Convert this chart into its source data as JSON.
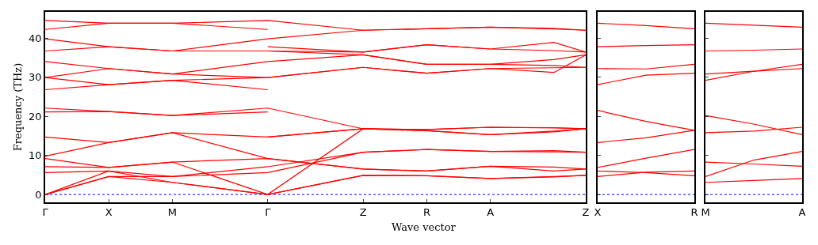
{
  "chart_data": [
    {
      "type": "line",
      "ylabel": "Frequency (THz)",
      "xlabel": "Wave vector",
      "ylim": [
        -2,
        46.7
      ],
      "categories": [
        "Γ",
        null,
        "X",
        null,
        "M",
        null,
        null,
        "Γ",
        null,
        null,
        "Z",
        null,
        "R",
        null,
        "A",
        null,
        null,
        "Z"
      ],
      "yticks": [
        0,
        10,
        20,
        30,
        40
      ],
      "ref_lines": [
        {
          "axis": "y",
          "value": 0,
          "color": "#0000ff",
          "line_style": "dotted"
        }
      ],
      "series": [
        {
          "color": "#ff0000",
          "values": [
            44.5,
            null,
            43.8,
            null,
            43.8,
            null,
            null,
            44.5,
            null,
            null,
            42.0,
            null,
            42.4,
            null,
            42.8,
            null,
            42.3,
            42.0
          ]
        },
        {
          "color": "#ff0000",
          "values": [
            39.8,
            null,
            37.8,
            null,
            36.7,
            null,
            null,
            39.8,
            null,
            null,
            42.0,
            null,
            42.4,
            null,
            42.8,
            null,
            42.5,
            42.0
          ]
        },
        {
          "color": "#ff0000",
          "values": [
            36.7,
            null,
            37.8,
            null,
            36.7,
            null,
            null,
            36.7,
            null,
            null,
            36.4,
            null,
            38.3,
            null,
            37.2,
            null,
            36.8,
            36.4
          ]
        },
        {
          "color": "#ff0000",
          "values": [
            34.0,
            null,
            32.2,
            null,
            30.8,
            null,
            null,
            34.0,
            null,
            null,
            35.7,
            null,
            33.3,
            null,
            33.3,
            null,
            34.5,
            35.7
          ]
        },
        {
          "color": "#ff0000",
          "values": [
            29.9,
            null,
            32.2,
            null,
            30.8,
            null,
            null,
            29.9,
            null,
            null,
            32.5,
            null,
            31.0,
            null,
            32.2,
            null,
            32.4,
            32.5
          ]
        },
        {
          "color": "#ff0000",
          "values": [
            29.9,
            null,
            28.1,
            null,
            29.2,
            null,
            null,
            29.9,
            null,
            null,
            32.5,
            null,
            31.0,
            null,
            32.2,
            null,
            31.2,
            35.7
          ]
        },
        {
          "color": "#ff0000",
          "values": [
            22.1,
            null,
            21.2,
            null,
            20.2,
            null,
            null,
            22.1,
            null,
            null,
            16.8,
            null,
            16.6,
            null,
            17.2,
            null,
            17.1,
            16.8
          ]
        },
        {
          "color": "#ff0000",
          "values": [
            14.7,
            null,
            13.3,
            null,
            15.8,
            null,
            null,
            14.7,
            null,
            null,
            16.8,
            null,
            16.6,
            null,
            17.2,
            null,
            17.0,
            16.8
          ]
        },
        {
          "color": "#ff0000",
          "values": [
            9.8,
            null,
            13.3,
            null,
            15.8,
            null,
            null,
            9.2,
            null,
            null,
            6.5,
            null,
            6.0,
            null,
            7.2,
            null,
            6.0,
            6.5
          ]
        },
        {
          "color": "#ff0000",
          "values": [
            9.2,
            null,
            6.9,
            null,
            8.3,
            null,
            null,
            9.2,
            null,
            null,
            6.5,
            null,
            6.0,
            null,
            7.2,
            null,
            7.0,
            6.5
          ]
        },
        {
          "color": "#ff0000",
          "values": [
            5.6,
            null,
            6.0,
            null,
            4.6,
            null,
            null,
            7.1,
            null,
            null,
            10.8,
            null,
            11.5,
            null,
            11.0,
            null,
            11.2,
            10.8
          ]
        },
        {
          "color": "#ff0000",
          "values": [
            0,
            null,
            4.6,
            null,
            4.6,
            null,
            null,
            5.6,
            null,
            null,
            10.8,
            null,
            11.5,
            null,
            11.0,
            null,
            10.9,
            10.8
          ]
        },
        {
          "color": "#ff0000",
          "values": [
            7.1,
            null,
            6.9,
            null,
            8.3,
            null,
            null,
            0,
            null,
            null,
            4.9,
            null,
            4.8,
            null,
            4.1,
            null,
            4.6,
            4.9
          ]
        },
        {
          "color": "#ff0000",
          "values": [
            0,
            null,
            4.6,
            null,
            3.1,
            null,
            null,
            0,
            null,
            null,
            4.9,
            null,
            4.8,
            null,
            4.1,
            null,
            4.5,
            4.9
          ]
        },
        {
          "color": "#ff0000",
          "values": [
            0,
            null,
            6.0,
            null,
            3.1,
            null,
            null,
            0,
            null,
            null,
            16.8,
            null,
            16.3,
            null,
            15.3,
            null,
            16.2,
            16.8
          ]
        },
        {
          "color": "#ff0000",
          "values": [
            42.2,
            null,
            43.8,
            null,
            43.8,
            null,
            null,
            42.2,
            null,
            null,
            null,
            null,
            null,
            null,
            null,
            null,
            null,
            null
          ]
        },
        {
          "color": "#ff0000",
          "values": [
            26.8,
            null,
            28.1,
            null,
            29.2,
            null,
            null,
            26.8,
            null,
            null,
            null,
            null,
            null,
            null,
            null,
            null,
            null,
            null
          ]
        },
        {
          "color": "#ff0000",
          "values": [
            21.1,
            null,
            21.2,
            null,
            20.2,
            null,
            null,
            21.1,
            null,
            null,
            null,
            null,
            null,
            null,
            null,
            null,
            null,
            null
          ]
        },
        {
          "color": "#ff0000",
          "values": [
            null,
            null,
            null,
            null,
            null,
            null,
            null,
            37.8,
            null,
            null,
            36.4,
            null,
            38.3,
            null,
            37.2,
            null,
            38.9,
            36.4
          ]
        },
        {
          "color": "#ff0000",
          "values": [
            null,
            null,
            null,
            null,
            null,
            null,
            null,
            36.7,
            null,
            null,
            35.7,
            null,
            33.3,
            null,
            33.3,
            null,
            33.0,
            32.5
          ]
        },
        {
          "color": "#ff0000",
          "values": [
            null,
            null,
            null,
            null,
            null,
            null,
            null,
            14.7,
            null,
            null,
            16.8,
            null,
            16.3,
            null,
            15.3,
            null,
            16.0,
            16.8
          ]
        }
      ]
    },
    {
      "type": "line",
      "ylim": [
        -2,
        46.7
      ],
      "categories": [
        "X",
        null,
        "R"
      ],
      "yticks": [
        {
          "value": 0,
          "label": null
        },
        {
          "value": 10,
          "label": null
        },
        {
          "value": 20,
          "label": null
        },
        {
          "value": 30,
          "label": null
        },
        {
          "value": 40,
          "label": null
        }
      ],
      "tick_labels": "x",
      "ref_lines": [
        {
          "axis": "y",
          "value": 0,
          "color": "#0000ff",
          "line_style": "dotted"
        }
      ],
      "series": [
        {
          "color": "#ff0000",
          "values": [
            43.8,
            43.2,
            42.4
          ]
        },
        {
          "color": "#ff0000",
          "values": [
            37.8,
            38.1,
            38.3
          ]
        },
        {
          "color": "#ff0000",
          "values": [
            32.2,
            32.1,
            33.3
          ]
        },
        {
          "color": "#ff0000",
          "values": [
            28.1,
            30.5,
            31.0
          ]
        },
        {
          "color": "#ff0000",
          "values": [
            21.5,
            18.7,
            16.4
          ]
        },
        {
          "color": "#ff0000",
          "values": [
            13.3,
            14.5,
            16.4
          ]
        },
        {
          "color": "#ff0000",
          "values": [
            6.9,
            9.3,
            11.5
          ]
        },
        {
          "color": "#ff0000",
          "values": [
            6.0,
            5.6,
            4.8
          ]
        },
        {
          "color": "#ff0000",
          "values": [
            4.6,
            5.7,
            6.0
          ]
        }
      ]
    },
    {
      "type": "line",
      "ylim": [
        -2,
        46.7
      ],
      "categories": [
        "M",
        null,
        "A"
      ],
      "yticks": [
        {
          "value": 0,
          "label": null
        },
        {
          "value": 10,
          "label": null
        },
        {
          "value": 20,
          "label": null
        },
        {
          "value": 30,
          "label": null
        },
        {
          "value": 40,
          "label": null
        }
      ],
      "tick_labels": "x",
      "ref_lines": [
        {
          "axis": "y",
          "value": 0,
          "color": "#0000ff",
          "line_style": "dotted"
        }
      ],
      "series": [
        {
          "color": "#ff0000",
          "values": [
            43.8,
            43.3,
            42.8
          ]
        },
        {
          "color": "#ff0000",
          "values": [
            36.7,
            36.9,
            37.2
          ]
        },
        {
          "color": "#ff0000",
          "values": [
            30.8,
            31.5,
            32.2
          ]
        },
        {
          "color": "#ff0000",
          "values": [
            29.2,
            31.5,
            33.3
          ]
        },
        {
          "color": "#ff0000",
          "values": [
            20.2,
            18.0,
            15.3
          ]
        },
        {
          "color": "#ff0000",
          "values": [
            15.8,
            16.2,
            17.2
          ]
        },
        {
          "color": "#ff0000",
          "values": [
            8.3,
            7.8,
            7.2
          ]
        },
        {
          "color": "#ff0000",
          "values": [
            4.6,
            8.8,
            11.0
          ]
        },
        {
          "color": "#ff0000",
          "values": [
            3.1,
            3.6,
            4.1
          ]
        }
      ]
    }
  ]
}
